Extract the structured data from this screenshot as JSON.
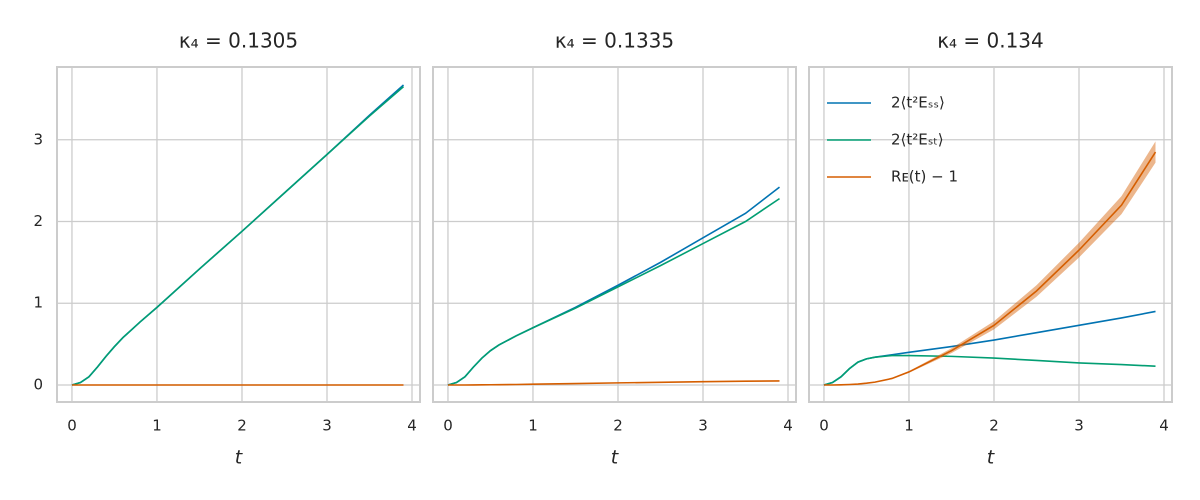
{
  "chart_data": [
    {
      "type": "line",
      "title": "κ₄ = 0.1305",
      "xlabel": "t",
      "x": [
        0,
        0.1,
        0.2,
        0.3,
        0.4,
        0.5,
        0.6,
        0.8,
        1,
        1.5,
        2,
        2.5,
        3,
        3.5,
        3.9
      ],
      "series": [
        {
          "color": "#0173b2",
          "values": [
            0,
            0.03,
            0.1,
            0.22,
            0.35,
            0.47,
            0.58,
            0.77,
            0.95,
            1.42,
            1.88,
            2.35,
            2.82,
            3.3,
            3.67
          ]
        },
        {
          "color": "#029e73",
          "values": [
            0,
            0.03,
            0.1,
            0.22,
            0.35,
            0.47,
            0.58,
            0.77,
            0.95,
            1.42,
            1.88,
            2.35,
            2.82,
            3.29,
            3.65
          ]
        },
        {
          "color": "#d55e00",
          "values": [
            0,
            0,
            0,
            0,
            0,
            0,
            0,
            0,
            0,
            0,
            0,
            0,
            0,
            0,
            0
          ]
        }
      ],
      "xlim": [
        -0.176,
        4.094
      ],
      "ylim": [
        -0.208,
        3.89
      ],
      "xticks": [
        0,
        1,
        2,
        3,
        4
      ],
      "yticks": [
        0,
        1,
        2,
        3
      ],
      "grid": true
    },
    {
      "type": "line",
      "title": "κ₄ = 0.1335",
      "xlabel": "t",
      "x": [
        0,
        0.1,
        0.2,
        0.3,
        0.4,
        0.5,
        0.6,
        0.8,
        1,
        1.5,
        2,
        2.5,
        3,
        3.5,
        3.9
      ],
      "series": [
        {
          "color": "#0173b2",
          "values": [
            0,
            0.03,
            0.1,
            0.22,
            0.33,
            0.42,
            0.49,
            0.6,
            0.7,
            0.95,
            1.22,
            1.5,
            1.8,
            2.1,
            2.42
          ]
        },
        {
          "color": "#029e73",
          "values": [
            0,
            0.03,
            0.1,
            0.22,
            0.33,
            0.42,
            0.49,
            0.6,
            0.7,
            0.94,
            1.2,
            1.46,
            1.73,
            2.0,
            2.28
          ]
        },
        {
          "color": "#d55e00",
          "values": [
            0,
            0,
            0,
            0.001,
            0.002,
            0.003,
            0.004,
            0.006,
            0.01,
            0.018,
            0.026,
            0.033,
            0.04,
            0.046,
            0.05
          ]
        }
      ],
      "xlim": [
        -0.176,
        4.094
      ],
      "ylim": [
        -0.208,
        3.89
      ],
      "xticks": [
        0,
        1,
        2,
        3,
        4
      ],
      "yticks": [
        0,
        1,
        2,
        3
      ],
      "grid": true
    },
    {
      "type": "line",
      "title": "κ₄ = 0.134",
      "xlabel": "t",
      "x": [
        0,
        0.1,
        0.2,
        0.3,
        0.4,
        0.5,
        0.6,
        0.8,
        1,
        1.5,
        2,
        2.5,
        3,
        3.5,
        3.9
      ],
      "series": [
        {
          "name": "2⟨t²Eₛₛ⟩",
          "color": "#0173b2",
          "values": [
            0,
            0.03,
            0.1,
            0.2,
            0.28,
            0.32,
            0.34,
            0.37,
            0.4,
            0.47,
            0.55,
            0.64,
            0.73,
            0.82,
            0.9
          ]
        },
        {
          "name": "2⟨t²Eₛₜ⟩",
          "color": "#029e73",
          "values": [
            0,
            0.03,
            0.1,
            0.2,
            0.28,
            0.32,
            0.34,
            0.36,
            0.36,
            0.35,
            0.33,
            0.3,
            0.27,
            0.25,
            0.23
          ]
        },
        {
          "name": "Rᴇ(t) − 1",
          "color": "#d55e00",
          "values": [
            0,
            0,
            0.002,
            0.006,
            0.012,
            0.022,
            0.035,
            0.08,
            0.16,
            0.42,
            0.73,
            1.15,
            1.65,
            2.2,
            2.85
          ],
          "errors": [
            0,
            0,
            0,
            0,
            0,
            0,
            0.002,
            0.005,
            0.01,
            0.03,
            0.05,
            0.07,
            0.09,
            0.11,
            0.13
          ]
        }
      ],
      "xlim": [
        -0.176,
        4.094
      ],
      "ylim": [
        -0.208,
        3.89
      ],
      "xticks": [
        0,
        1,
        2,
        3,
        4
      ],
      "yticks": [
        0,
        1,
        2,
        3
      ],
      "grid": true,
      "legend": "upper left"
    }
  ]
}
